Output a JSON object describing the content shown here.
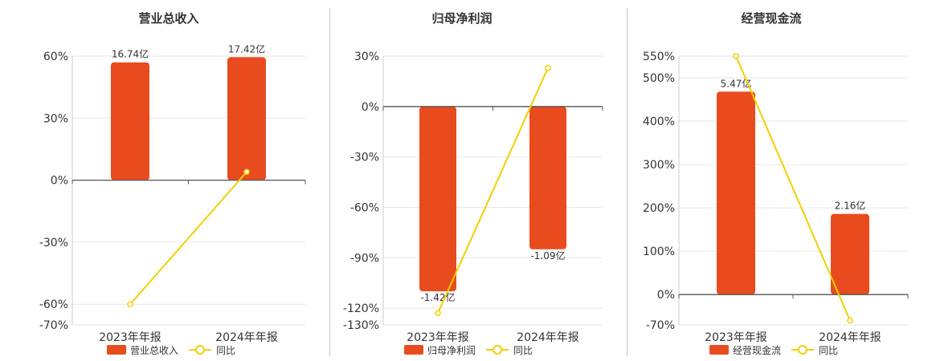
{
  "theme": {
    "bar_color": "#e84c1e",
    "line_color": "#f2d000",
    "grid_color": "#e6e6e6",
    "axis_color": "#555555",
    "text_color": "#333333"
  },
  "chart_data": [
    {
      "type": "bar",
      "title": "营业总收入",
      "categories": [
        "2023年年报",
        "2024年年报"
      ],
      "bar_series": {
        "name": "营业总收入",
        "values_pct": [
          57,
          59.5
        ],
        "labels": [
          "16.74亿",
          "17.42亿"
        ]
      },
      "line_series": {
        "name": "同比",
        "values": [
          -60,
          4
        ]
      },
      "yticks": [
        60,
        30,
        0,
        -30,
        -60,
        -70
      ],
      "ytick_labels": [
        "60%",
        "30%",
        "0%",
        "-30%",
        "-60%",
        "-70%"
      ],
      "ylim": [
        -70,
        60
      ]
    },
    {
      "type": "bar",
      "title": "归母净利润",
      "categories": [
        "2023年年报",
        "2024年年报"
      ],
      "bar_series": {
        "name": "归母净利润",
        "values_pct": [
          -110,
          -85
        ],
        "labels": [
          "-1.42亿",
          "-1.09亿"
        ]
      },
      "line_series": {
        "name": "同比",
        "values": [
          -123,
          23
        ]
      },
      "yticks": [
        30,
        0,
        -30,
        -60,
        -90,
        -120,
        -130
      ],
      "ytick_labels": [
        "30%",
        "0%",
        "-30%",
        "-60%",
        "-90%",
        "-120%",
        "-130%"
      ],
      "ylim": [
        -130,
        30
      ]
    },
    {
      "type": "bar",
      "title": "经营现金流",
      "categories": [
        "2023年年报",
        "2024年年报"
      ],
      "bar_series": {
        "name": "经营现金流",
        "values_pct": [
          468,
          186
        ],
        "labels": [
          "5.47亿",
          "2.16亿"
        ]
      },
      "line_series": {
        "name": "同比",
        "values": [
          550,
          -60
        ]
      },
      "yticks": [
        550,
        500,
        400,
        300,
        200,
        100,
        0,
        -70
      ],
      "ytick_labels": [
        "550%",
        "500%",
        "400%",
        "300%",
        "200%",
        "100%",
        "0%",
        "-70%"
      ],
      "ylim": [
        -70,
        550
      ]
    }
  ]
}
